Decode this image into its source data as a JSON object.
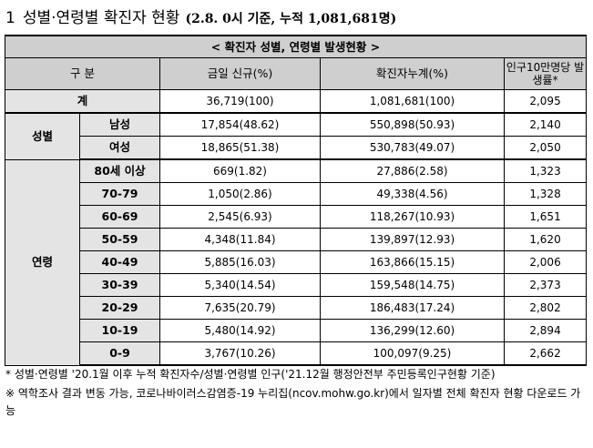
{
  "heading": {
    "number": "1",
    "title": "성별·연령별 확진자 현황",
    "subtitle": "(2.8. 0시 기준, 누적 1,081,681명)"
  },
  "table": {
    "caption": "< 확진자 성별, 연령별 발생현황 >",
    "columns": {
      "category": "구 분",
      "new_cases": "금일 신규(%)",
      "cumulative": "확진자누계(%)",
      "rate": "인구10만명당 발생률*"
    },
    "total": {
      "label": "계",
      "new_cases": "36,719(100)",
      "cumulative": "1,081,681(100)",
      "rate": "2,095"
    },
    "gender_group": "성별",
    "gender_rows": [
      {
        "label": "남성",
        "new_cases": "17,854(48.62)",
        "cumulative": "550,898(50.93)",
        "rate": "2,140"
      },
      {
        "label": "여성",
        "new_cases": "18,865(51.38)",
        "cumulative": "530,783(49.07)",
        "rate": "2,050"
      }
    ],
    "age_group": "연령",
    "age_rows": [
      {
        "label": "80세 이상",
        "new_cases": "669(1.82)",
        "cumulative": "27,886(2.58)",
        "rate": "1,323"
      },
      {
        "label": "70-79",
        "new_cases": "1,050(2.86)",
        "cumulative": "49,338(4.56)",
        "rate": "1,328"
      },
      {
        "label": "60-69",
        "new_cases": "2,545(6.93)",
        "cumulative": "118,267(10.93)",
        "rate": "1,651"
      },
      {
        "label": "50-59",
        "new_cases": "4,348(11.84)",
        "cumulative": "139,897(12.93)",
        "rate": "1,620"
      },
      {
        "label": "40-49",
        "new_cases": "5,885(16.03)",
        "cumulative": "163,866(15.15)",
        "rate": "2,006"
      },
      {
        "label": "30-39",
        "new_cases": "5,340(14.54)",
        "cumulative": "159,548(14.75)",
        "rate": "2,373"
      },
      {
        "label": "20-29",
        "new_cases": "7,635(20.79)",
        "cumulative": "186,483(17.24)",
        "rate": "2,802"
      },
      {
        "label": "10-19",
        "new_cases": "5,480(14.92)",
        "cumulative": "136,299(12.60)",
        "rate": "2,894"
      },
      {
        "label": "0-9",
        "new_cases": "3,767(10.26)",
        "cumulative": "100,097(9.25)",
        "rate": "2,662"
      }
    ]
  },
  "notes": [
    "* 성별·연령별 '20.1월 이후 누적 확진자수/성별·연령별 인구('21.12월 행정안전부 주민등록인구현황 기준)",
    "※ 역학조사 결과 변동 가능, 코로나바이러스감염증-19 누리집(ncov.mohw.go.kr)에서 일자별 전체 확진자 현황 다운로드 가능"
  ]
}
